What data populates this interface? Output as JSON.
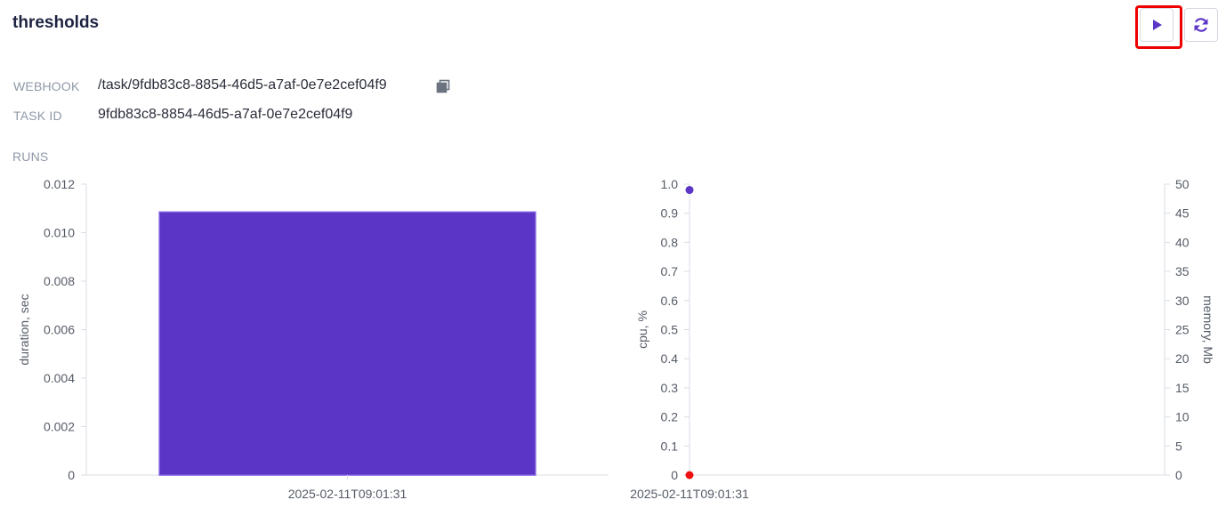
{
  "page": {
    "title": "thresholds"
  },
  "toolbar": {
    "run_icon": "play-icon",
    "refresh_icon": "refresh-icon",
    "accent": "#5b35c6",
    "highlight_color": "#ee0000"
  },
  "meta": {
    "webhook_label": "WEBHOOK",
    "webhook_value": "/task/9fdb83c8-8854-46d5-a7af-0e7e2cef04f9",
    "task_id_label": "TASK ID",
    "task_id_value": "9fdb83c8-8854-46d5-a7af-0e7e2cef04f9",
    "copy_icon": "copy-icon"
  },
  "runs": {
    "label": "RUNS"
  },
  "chart_data": [
    {
      "type": "bar",
      "categories": [
        "2025-02-11T09:01:31"
      ],
      "series": [
        {
          "values": [
            0.01085
          ],
          "color": "#5b35c6"
        }
      ],
      "ylabel": "duration, sec",
      "ylim": [
        0,
        0.012
      ],
      "yticks": [
        "0",
        "0.002",
        "0.004",
        "0.006",
        "0.008",
        "0.010",
        "0.012"
      ]
    },
    {
      "type": "scatter",
      "categories": [
        "2025-02-11T09:01:31"
      ],
      "series": [
        {
          "values": [
            0.98
          ],
          "axis": "left",
          "color": "#5b35c6"
        },
        {
          "values": [
            0
          ],
          "axis": "right",
          "color": "#ee1111"
        }
      ],
      "ylabel": "cpu, %",
      "ylabel_right": "memory, Mb",
      "ylim": [
        0,
        1
      ],
      "ylim_right": [
        0,
        50
      ],
      "yticks": [
        "0",
        "0.1",
        "0.2",
        "0.3",
        "0.4",
        "0.5",
        "0.6",
        "0.7",
        "0.8",
        "0.9",
        "1.0"
      ],
      "yticks_right": [
        "0",
        "5",
        "10",
        "15",
        "20",
        "25",
        "30",
        "35",
        "40",
        "45",
        "50"
      ]
    }
  ]
}
